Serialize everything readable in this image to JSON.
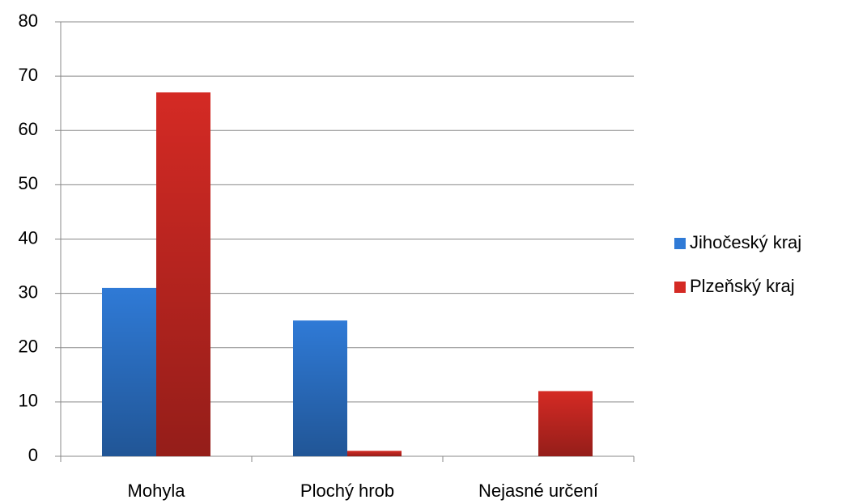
{
  "chart_data": {
    "type": "bar",
    "categories": [
      "Mohyla",
      "Plochý hrob",
      "Nejasné určení"
    ],
    "series": [
      {
        "name": "Jihočeský kraj",
        "color": "#2f7ad6",
        "values": [
          31,
          25,
          0
        ]
      },
      {
        "name": "Plzeňský kraj",
        "color": "#d42a24",
        "values": [
          67,
          1,
          12
        ]
      }
    ],
    "ylim": [
      0,
      80
    ],
    "yticks": [
      0,
      10,
      20,
      30,
      40,
      50,
      60,
      70,
      80
    ],
    "grid": true,
    "legend": "right"
  }
}
